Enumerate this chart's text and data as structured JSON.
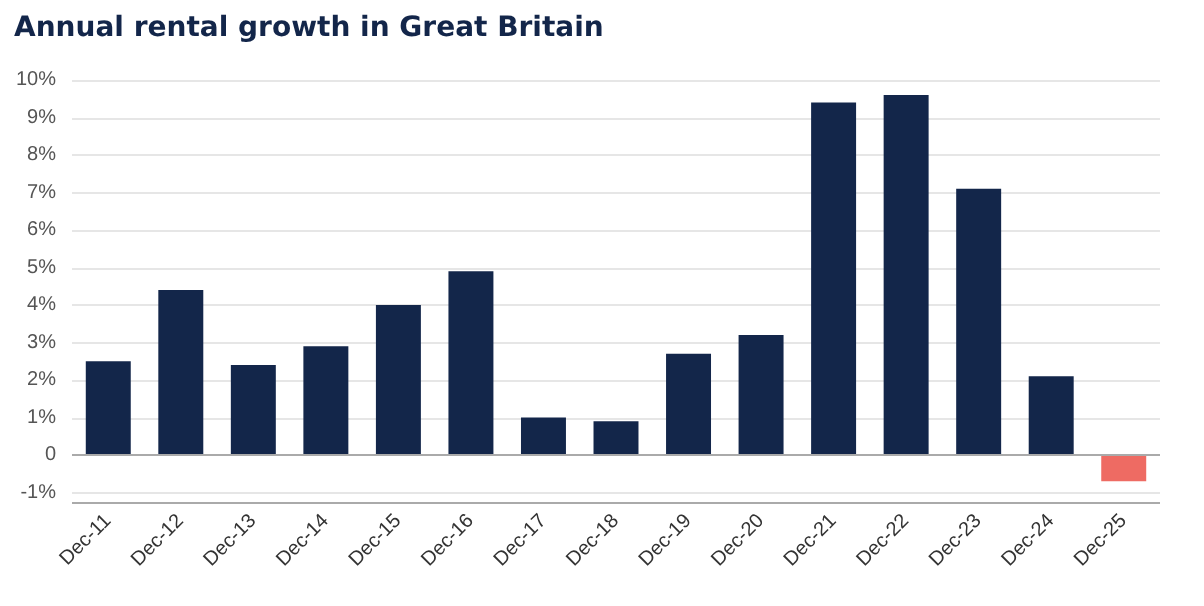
{
  "chart_data": {
    "type": "bar",
    "title": "Annual rental growth in Great Britain",
    "categories": [
      "Dec-11",
      "Dec-12",
      "Dec-13",
      "Dec-14",
      "Dec-15",
      "Dec-16",
      "Dec-17",
      "Dec-18",
      "Dec-19",
      "Dec-20",
      "Dec-21",
      "Dec-22",
      "Dec-23",
      "Dec-24",
      "Dec-25"
    ],
    "values": [
      2.5,
      4.4,
      2.4,
      2.9,
      4.0,
      4.9,
      1.0,
      0.9,
      2.7,
      3.2,
      9.4,
      9.6,
      7.1,
      2.1,
      -0.7
    ],
    "colors": [
      "#13264a",
      "#13264a",
      "#13264a",
      "#13264a",
      "#13264a",
      "#13264a",
      "#13264a",
      "#13264a",
      "#13264a",
      "#13264a",
      "#13264a",
      "#13264a",
      "#13264a",
      "#13264a",
      "#ee6b63"
    ],
    "ylim": [
      -1.25,
      10
    ],
    "yticks": [
      {
        "value": -1,
        "label": "-1%"
      },
      {
        "value": 0,
        "label": "0"
      },
      {
        "value": 1,
        "label": "1%"
      },
      {
        "value": 2,
        "label": "2%"
      },
      {
        "value": 3,
        "label": "3%"
      },
      {
        "value": 4,
        "label": "4%"
      },
      {
        "value": 5,
        "label": "5%"
      },
      {
        "value": 6,
        "label": "6%"
      },
      {
        "value": 7,
        "label": "7%"
      },
      {
        "value": 8,
        "label": "8%"
      },
      {
        "value": 9,
        "label": "9%"
      },
      {
        "value": 10,
        "label": "10%"
      }
    ],
    "grid": "y"
  }
}
